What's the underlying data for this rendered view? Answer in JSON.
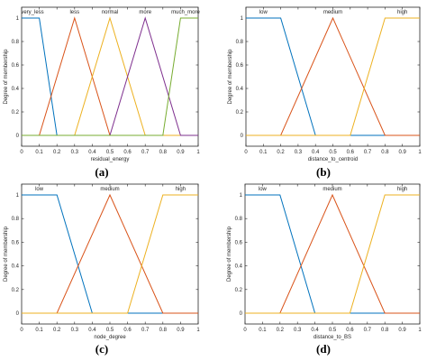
{
  "chart_data": [
    {
      "type": "line",
      "panel_label": "(a)",
      "xlabel": "residual_energy",
      "ylabel": "Degree of membership",
      "xlim": [
        0,
        1
      ],
      "ylim": [
        0,
        1
      ],
      "x_ticks": [
        "0",
        "0.1",
        "0.2",
        "0.3",
        "0.4",
        "0.5",
        "0.6",
        "0.7",
        "0.8",
        "0.9",
        "1"
      ],
      "y_ticks": [
        "0",
        "0.2",
        "0.4",
        "0.6",
        "0.8",
        "1"
      ],
      "series": [
        {
          "name": "very_less",
          "color": "#0072BD",
          "x": [
            0,
            0.1,
            0.2
          ],
          "y": [
            1,
            1,
            0
          ]
        },
        {
          "name": "less",
          "color": "#D95319",
          "x": [
            0.1,
            0.3,
            0.5
          ],
          "y": [
            0,
            1,
            0
          ]
        },
        {
          "name": "normal",
          "color": "#EDB120",
          "x": [
            0.3,
            0.5,
            0.7
          ],
          "y": [
            0,
            1,
            0
          ]
        },
        {
          "name": "more",
          "color": "#7E2F8E",
          "x": [
            0.5,
            0.7,
            0.9
          ],
          "y": [
            0,
            1,
            0
          ]
        },
        {
          "name": "much_more",
          "color": "#77AC30",
          "x": [
            0.8,
            0.9,
            1
          ],
          "y": [
            0,
            1,
            1
          ]
        }
      ]
    },
    {
      "type": "line",
      "panel_label": "(b)",
      "xlabel": "distance_to_centroid",
      "ylabel": "Degree of membership",
      "xlim": [
        0,
        1
      ],
      "ylim": [
        0,
        1
      ],
      "x_ticks": [
        "0",
        "0.1",
        "0.2",
        "0.3",
        "0.4",
        "0.5",
        "0.6",
        "0.7",
        "0.8",
        "0.9",
        "1"
      ],
      "y_ticks": [
        "0",
        "0.2",
        "0.4",
        "0.6",
        "0.8",
        "1"
      ],
      "series": [
        {
          "name": "low",
          "color": "#0072BD",
          "x": [
            0,
            0.2,
            0.4
          ],
          "y": [
            1,
            1,
            0
          ]
        },
        {
          "name": "medium",
          "color": "#D95319",
          "x": [
            0.2,
            0.5,
            0.8
          ],
          "y": [
            0,
            1,
            0
          ]
        },
        {
          "name": "high",
          "color": "#EDB120",
          "x": [
            0.6,
            0.8,
            1
          ],
          "y": [
            0,
            1,
            1
          ]
        }
      ]
    },
    {
      "type": "line",
      "panel_label": "(c)",
      "xlabel": "node_degree",
      "ylabel": "Degree of membership",
      "xlim": [
        0,
        1
      ],
      "ylim": [
        0,
        1
      ],
      "x_ticks": [
        "0",
        "0.1",
        "0.2",
        "0.3",
        "0.4",
        "0.5",
        "0.6",
        "0.7",
        "0.8",
        "0.9",
        "1"
      ],
      "y_ticks": [
        "0",
        "0.2",
        "0.4",
        "0.6",
        "0.8",
        "1"
      ],
      "series": [
        {
          "name": "low",
          "color": "#0072BD",
          "x": [
            0,
            0.2,
            0.4
          ],
          "y": [
            1,
            1,
            0
          ]
        },
        {
          "name": "medium",
          "color": "#D95319",
          "x": [
            0.2,
            0.5,
            0.8
          ],
          "y": [
            0,
            1,
            0
          ]
        },
        {
          "name": "high",
          "color": "#EDB120",
          "x": [
            0.6,
            0.8,
            1
          ],
          "y": [
            0,
            1,
            1
          ]
        }
      ]
    },
    {
      "type": "line",
      "panel_label": "(d)",
      "xlabel": "distance_to_BS",
      "ylabel": "Degree of membership",
      "xlim": [
        0,
        1
      ],
      "ylim": [
        0,
        1
      ],
      "x_ticks": [
        "0",
        "0.1",
        "0.2",
        "0.3",
        "0.4",
        "0.5",
        "0.6",
        "0.7",
        "0.8",
        "0.9",
        "1"
      ],
      "y_ticks": [
        "0",
        "0.2",
        "0.4",
        "0.6",
        "0.8",
        "1"
      ],
      "series": [
        {
          "name": "low",
          "color": "#0072BD",
          "x": [
            0,
            0.2,
            0.4
          ],
          "y": [
            1,
            1,
            0
          ]
        },
        {
          "name": "medium",
          "color": "#D95319",
          "x": [
            0.2,
            0.5,
            0.8
          ],
          "y": [
            0,
            1,
            0
          ]
        },
        {
          "name": "high",
          "color": "#EDB120",
          "x": [
            0.6,
            0.8,
            1
          ],
          "y": [
            0,
            1,
            1
          ]
        }
      ]
    }
  ]
}
